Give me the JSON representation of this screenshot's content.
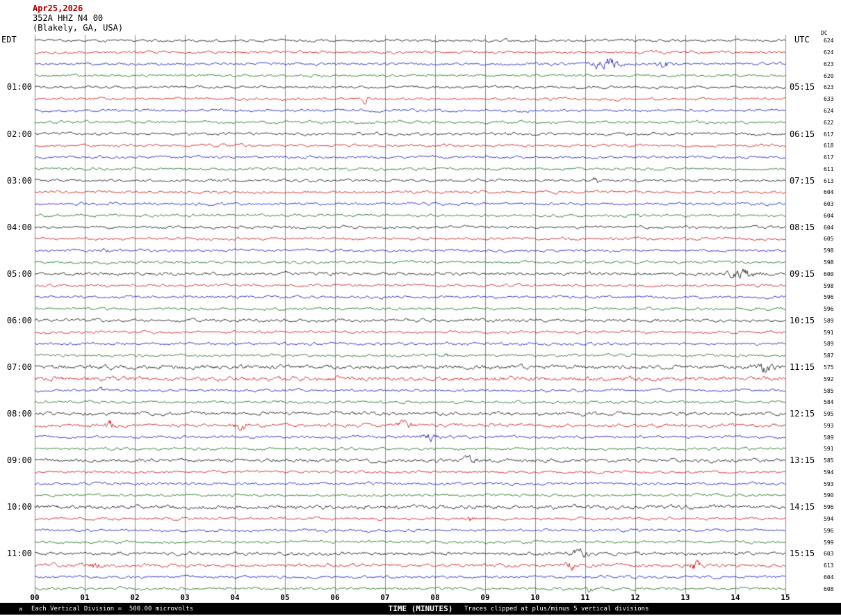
{
  "header": {
    "date": "Apr25,2026",
    "station": "352A HHZ N4 00",
    "location": "(Blakely, GA, USA)"
  },
  "axes": {
    "left_title": "EDT",
    "right_title": "UTC",
    "dc_title": "DC"
  },
  "footer": {
    "mark": "M",
    "left": "Each Vertical Division =  500.00 microvolts",
    "axis_title": "TIME (MINUTES)",
    "right": "Traces clipped at plus/minus 5 vertical divisions"
  },
  "chart_data": {
    "type": "line",
    "title": "Helicorder seismogram, station 352A HHZ N4 00 (Blakely, GA, USA), Apr25,2026",
    "xlabel": "TIME (MINUTES)",
    "x_axis": {
      "minutes": 15,
      "ticks": [
        "00",
        "01",
        "02",
        "03",
        "04",
        "05",
        "06",
        "07",
        "08",
        "09",
        "10",
        "11",
        "12",
        "13",
        "14",
        "15"
      ]
    },
    "rows": 48,
    "minutes_per_row": 15,
    "trace_colors": [
      "#000000",
      "#cc0000",
      "#0000bb",
      "#006600"
    ],
    "grid_color": "#8a8a8a",
    "left_axis": {
      "title": "EDT",
      "labels": [
        {
          "row": 4,
          "text": "01:00"
        },
        {
          "row": 8,
          "text": "02:00"
        },
        {
          "row": 12,
          "text": "03:00"
        },
        {
          "row": 16,
          "text": "04:00"
        },
        {
          "row": 20,
          "text": "05:00"
        },
        {
          "row": 24,
          "text": "06:00"
        },
        {
          "row": 28,
          "text": "07:00"
        },
        {
          "row": 32,
          "text": "08:00"
        },
        {
          "row": 36,
          "text": "09:00"
        },
        {
          "row": 40,
          "text": "10:00"
        },
        {
          "row": 44,
          "text": "11:00"
        }
      ]
    },
    "right_axis": {
      "title": "UTC",
      "labels": [
        {
          "row": 4,
          "text": "05:15"
        },
        {
          "row": 8,
          "text": "06:15"
        },
        {
          "row": 12,
          "text": "07:15"
        },
        {
          "row": 16,
          "text": "08:15"
        },
        {
          "row": 20,
          "text": "09:15"
        },
        {
          "row": 24,
          "text": "10:15"
        },
        {
          "row": 28,
          "text": "11:15"
        },
        {
          "row": 32,
          "text": "12:15"
        },
        {
          "row": 36,
          "text": "13:15"
        },
        {
          "row": 40,
          "text": "14:15"
        },
        {
          "row": 44,
          "text": "15:15"
        }
      ]
    },
    "dc_axis": {
      "title": "DC",
      "values": [
        "624",
        "624",
        "623",
        "620",
        "623",
        "633",
        "624",
        "622",
        "617",
        "618",
        "617",
        "611",
        "613",
        "604",
        "603",
        "604",
        "604",
        "605",
        "598",
        "598",
        "600",
        "598",
        "596",
        "596",
        "589",
        "591",
        "589",
        "587",
        "575",
        "592",
        "585",
        "584",
        "595",
        "593",
        "589",
        "591",
        "585",
        "594",
        "593",
        "590",
        "596",
        "594",
        "596",
        "599",
        "603",
        "613",
        "604",
        "608"
      ]
    },
    "row_amp": {
      "20": 1.2,
      "24": 1.2,
      "28": 1.5,
      "29": 1.6,
      "32": 1.3,
      "33": 1.3,
      "36": 1.3,
      "40": 1.5,
      "44": 1.3,
      "45": 1.3
    },
    "events": [
      {
        "row": 2,
        "minute": 11.4,
        "amp": 5.0,
        "width": 0.25
      },
      {
        "row": 2,
        "minute": 12.6,
        "amp": 3.0,
        "width": 0.15
      },
      {
        "row": 5,
        "minute": 6.6,
        "amp": 3.0,
        "width": 0.05
      },
      {
        "row": 12,
        "minute": 11.2,
        "amp": 2.0,
        "width": 0.08
      },
      {
        "row": 18,
        "minute": 1.4,
        "amp": 2.0,
        "width": 0.06
      },
      {
        "row": 20,
        "minute": 14.1,
        "amp": 2.5,
        "width": 0.3
      },
      {
        "row": 27,
        "minute": 8.2,
        "amp": 2.5,
        "width": 0.06
      },
      {
        "row": 28,
        "minute": 14.6,
        "amp": 2.0,
        "width": 0.2
      },
      {
        "row": 30,
        "minute": 1.3,
        "amp": 2.0,
        "width": 0.06
      },
      {
        "row": 33,
        "minute": 1.5,
        "amp": 2.5,
        "width": 0.1
      },
      {
        "row": 33,
        "minute": 4.1,
        "amp": 2.5,
        "width": 0.12
      },
      {
        "row": 33,
        "minute": 7.4,
        "amp": 3.0,
        "width": 0.12
      },
      {
        "row": 34,
        "minute": 7.9,
        "amp": 2.5,
        "width": 0.15
      },
      {
        "row": 36,
        "minute": 8.7,
        "amp": 2.0,
        "width": 0.1
      },
      {
        "row": 41,
        "minute": 8.7,
        "amp": 2.2,
        "width": 0.1
      },
      {
        "row": 44,
        "minute": 10.9,
        "amp": 2.5,
        "width": 0.15
      },
      {
        "row": 45,
        "minute": 1.2,
        "amp": 2.5,
        "width": 0.1
      },
      {
        "row": 45,
        "minute": 10.7,
        "amp": 2.2,
        "width": 0.1
      },
      {
        "row": 45,
        "minute": 13.2,
        "amp": 2.5,
        "width": 0.12
      },
      {
        "row": 47,
        "minute": 11.1,
        "amp": 2.0,
        "width": 0.08
      }
    ],
    "footnotes": {
      "scale": "Each Vertical Division =  500.00 microvolts",
      "clipping": "Traces clipped at plus/minus 5 vertical divisions"
    }
  }
}
